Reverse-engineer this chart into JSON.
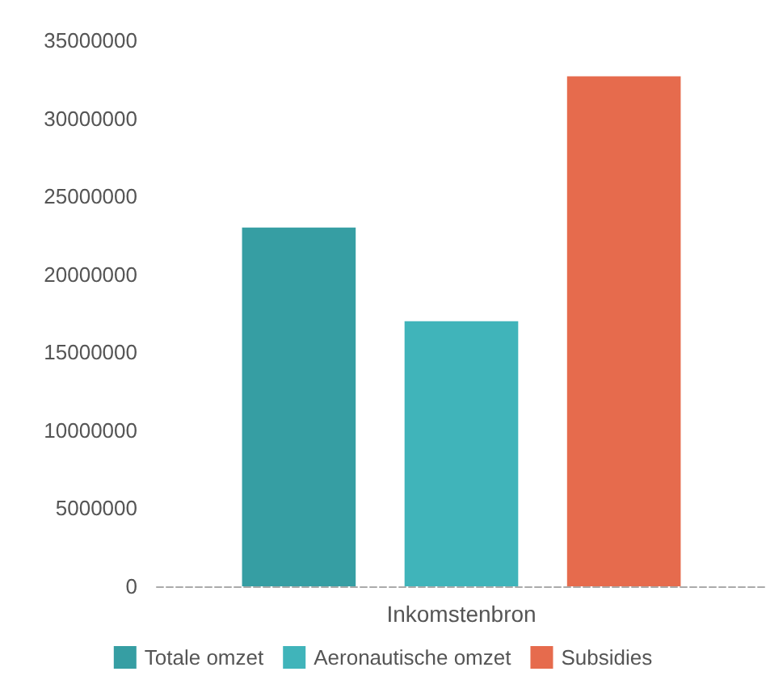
{
  "chart_data": {
    "type": "bar",
    "categories": [
      "Inkomstenbron"
    ],
    "series": [
      {
        "name": "Totale omzet",
        "color": "#369ea3",
        "values": [
          23000000
        ]
      },
      {
        "name": "Aeronautische omzet",
        "color": "#40b4ba",
        "values": [
          17000000
        ]
      },
      {
        "name": "Subsidies",
        "color": "#e66b4d",
        "values": [
          32700000
        ]
      }
    ],
    "ylim": [
      0,
      35000000
    ],
    "yticks": [
      0,
      5000000,
      10000000,
      15000000,
      20000000,
      25000000,
      30000000,
      35000000
    ],
    "grid": false,
    "legend": "bottom"
  }
}
